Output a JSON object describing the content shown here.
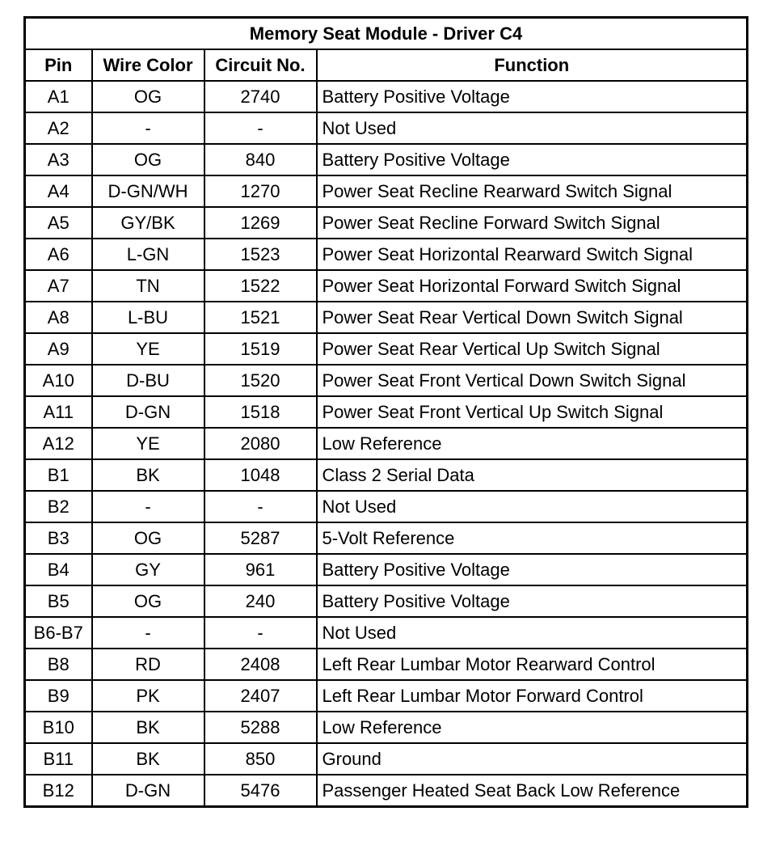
{
  "table": {
    "title": "Memory Seat Module - Driver C4",
    "header": [
      "Pin",
      "Wire Color",
      "Circuit No.",
      "Function"
    ],
    "rows": [
      [
        "A1",
        "OG",
        "2740",
        "Battery Positive Voltage"
      ],
      [
        "A2",
        "-",
        "-",
        "Not Used"
      ],
      [
        "A3",
        "OG",
        "840",
        "Battery Positive Voltage"
      ],
      [
        "A4",
        "D-GN/WH",
        "1270",
        "Power Seat Recline Rearward Switch Signal"
      ],
      [
        "A5",
        "GY/BK",
        "1269",
        "Power Seat Recline Forward Switch Signal"
      ],
      [
        "A6",
        "L-GN",
        "1523",
        "Power Seat Horizontal Rearward Switch Signal"
      ],
      [
        "A7",
        "TN",
        "1522",
        "Power Seat Horizontal Forward Switch Signal"
      ],
      [
        "A8",
        "L-BU",
        "1521",
        "Power Seat Rear Vertical Down Switch Signal"
      ],
      [
        "A9",
        "YE",
        "1519",
        "Power Seat Rear Vertical Up Switch Signal"
      ],
      [
        "A10",
        "D-BU",
        "1520",
        "Power Seat Front Vertical Down Switch Signal"
      ],
      [
        "A11",
        "D-GN",
        "1518",
        "Power Seat Front Vertical Up Switch Signal"
      ],
      [
        "A12",
        "YE",
        "2080",
        "Low Reference"
      ],
      [
        "B1",
        "BK",
        "1048",
        "Class 2 Serial Data"
      ],
      [
        "B2",
        "-",
        "-",
        "Not Used"
      ],
      [
        "B3",
        "OG",
        "5287",
        "5-Volt Reference"
      ],
      [
        "B4",
        "GY",
        "961",
        "Battery Positive Voltage"
      ],
      [
        "B5",
        "OG",
        "240",
        "Battery Positive Voltage"
      ],
      [
        "B6-B7",
        "-",
        "-",
        "Not Used"
      ],
      [
        "B8",
        "RD",
        "2408",
        "Left Rear Lumbar Motor Rearward Control"
      ],
      [
        "B9",
        "PK",
        "2407",
        "Left Rear Lumbar Motor Forward Control"
      ],
      [
        "B10",
        "BK",
        "5288",
        "Low Reference"
      ],
      [
        "B11",
        "BK",
        "850",
        "Ground"
      ],
      [
        "B12",
        "D-GN",
        "5476",
        "Passenger Heated Seat Back Low Reference"
      ]
    ]
  }
}
